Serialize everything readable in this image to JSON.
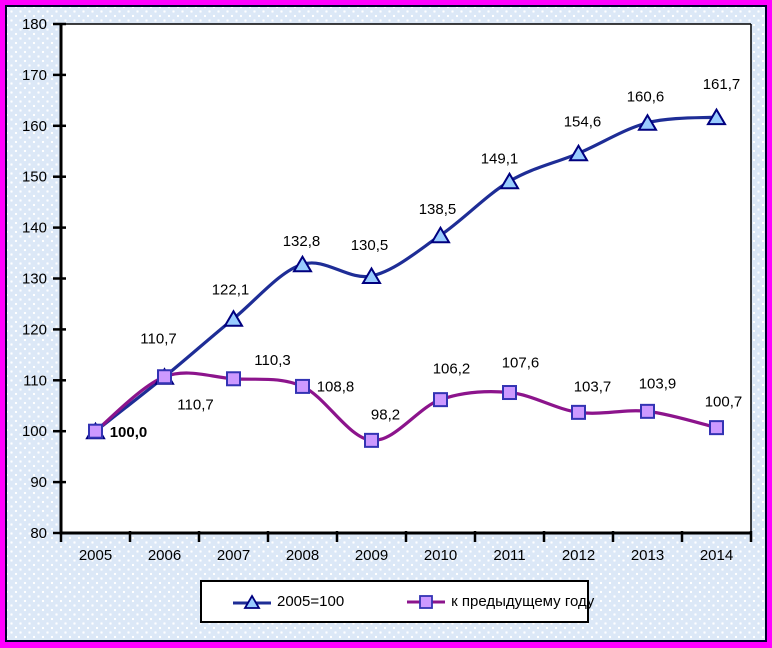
{
  "frame": {
    "outer_border_color": "#FF00FF",
    "inner_border_color": "#000030",
    "background_color": "#DCE8F7",
    "plot_background": "#FFFFFF"
  },
  "chart_data": {
    "type": "line",
    "title": "",
    "xlabel": "",
    "ylabel": "",
    "ylim": [
      80,
      180
    ],
    "y_tick_step": 10,
    "y_tick_labels": [
      "180",
      "170",
      "160",
      "150",
      "140",
      "130",
      "120",
      "110",
      "100",
      "90",
      "80"
    ],
    "grid": false,
    "legend_position": "bottom",
    "categories": [
      "2005",
      "2006",
      "2007",
      "2008",
      "2009",
      "2010",
      "2011",
      "2012",
      "2013",
      "2014"
    ],
    "series": [
      {
        "name": "2005=100",
        "marker": "triangle",
        "line_color": "#1E2D96",
        "marker_fill": "#99CCFF",
        "marker_stroke": "#00007F",
        "values": [
          100.0,
          110.7,
          122.1,
          132.8,
          130.5,
          138.5,
          149.1,
          154.6,
          160.6,
          161.7
        ],
        "labels": [
          "100,0",
          "110,7",
          "122,1",
          "132,8",
          "130,5",
          "138,5",
          "149,1",
          "154,6",
          "160,6",
          "161,7"
        ]
      },
      {
        "name": "к предыдущему году",
        "marker": "square",
        "line_color": "#8C148C",
        "marker_fill": "#CC99FF",
        "marker_stroke": "#3333B4",
        "values": [
          100.0,
          110.7,
          110.3,
          108.8,
          98.2,
          106.2,
          107.6,
          103.7,
          103.9,
          100.7
        ],
        "labels": [
          "",
          "110,7",
          "110,3",
          "108,8",
          "98,2",
          "106,2",
          "107,6",
          "103,7",
          "103,9",
          "100,7"
        ]
      }
    ]
  }
}
